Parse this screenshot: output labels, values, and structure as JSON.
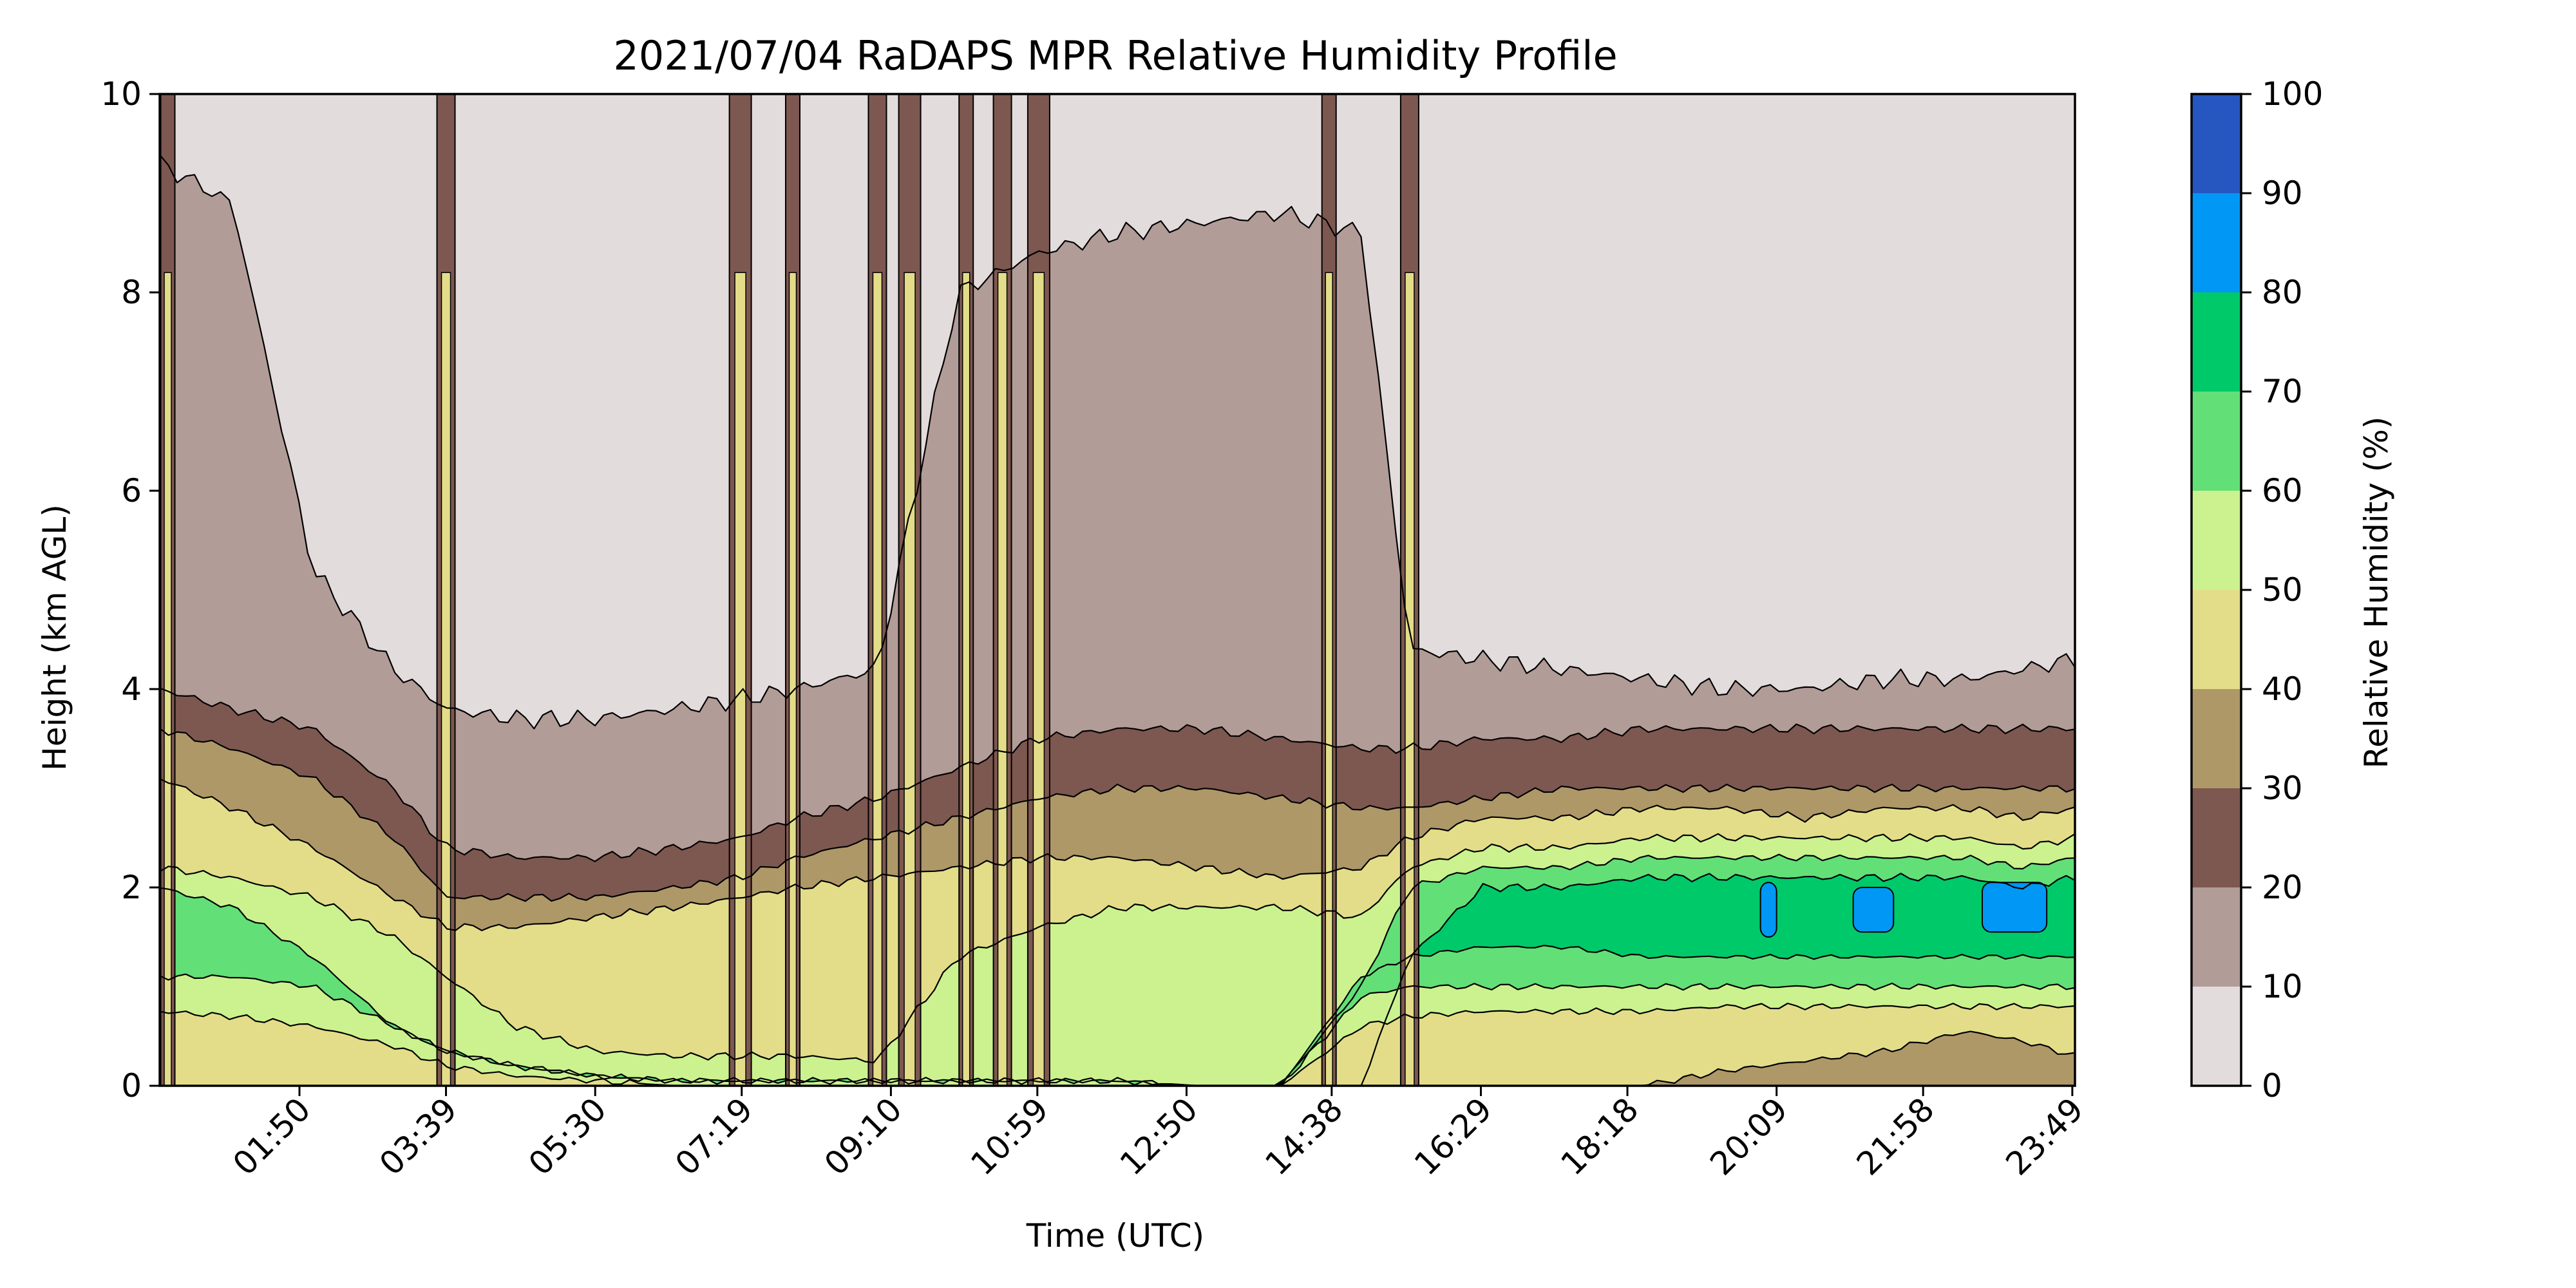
{
  "chart_data": {
    "type": "contourf",
    "title": "2021/07/04 RaDAPS MPR Relative Humidity Profile",
    "xlabel": "Time (UTC)",
    "ylabel": "Height (km AGL)",
    "colorbar_label": "Relative Humidity (%)",
    "x_ticks": [
      "01:50",
      "03:39",
      "05:30",
      "07:19",
      "09:10",
      "10:59",
      "12:50",
      "14:38",
      "16:29",
      "18:18",
      "20:09",
      "21:58",
      "23:49"
    ],
    "x_tick_hours": [
      1.833,
      3.65,
      5.5,
      7.317,
      9.167,
      10.983,
      12.833,
      14.633,
      16.483,
      18.3,
      20.15,
      21.967,
      23.817
    ],
    "xlim_hours": [
      0.1,
      23.85
    ],
    "y_ticks": [
      0,
      2,
      4,
      6,
      8,
      10
    ],
    "ylim": [
      0,
      10
    ],
    "levels": [
      0,
      10,
      20,
      30,
      40,
      50,
      60,
      70,
      80,
      90,
      100
    ],
    "level_colors": [
      "#e3dcdc",
      "#b29c98",
      "#7d5850",
      "#ae9868",
      "#e3dd8a",
      "#cbf28f",
      "#63df78",
      "#00c96a",
      "#0097f5",
      "#2656c0"
    ],
    "boundaries_km": {
      "profile_hours": [
        0.1,
        1.0,
        2.0,
        3.0,
        3.65,
        4.5,
        5.5,
        6.5,
        7.3,
        8.0,
        9.0,
        10.0,
        11.0,
        12.0,
        13.0,
        14.0,
        15.0,
        15.6,
        16.5,
        17.5,
        18.5,
        19.5,
        20.5,
        21.5,
        22.5,
        23.2,
        23.85
      ],
      "rh_10": [
        9.3,
        8.9,
        5.2,
        4.2,
        3.8,
        3.7,
        3.7,
        3.8,
        3.9,
        4.0,
        4.2,
        8.0,
        8.4,
        8.6,
        8.7,
        8.8,
        8.6,
        4.4,
        4.3,
        4.2,
        4.1,
        4.0,
        4.0,
        4.1,
        4.1,
        4.2,
        4.3
      ],
      "rh_20": [
        4.0,
        3.8,
        3.6,
        3.0,
        2.4,
        2.3,
        2.3,
        2.4,
        2.5,
        2.7,
        2.9,
        3.2,
        3.5,
        3.6,
        3.6,
        3.5,
        3.4,
        3.4,
        3.5,
        3.5,
        3.6,
        3.6,
        3.6,
        3.6,
        3.6,
        3.6,
        3.6
      ],
      "rh_30": [
        3.6,
        3.4,
        3.1,
        2.5,
        1.9,
        1.9,
        1.9,
        2.0,
        2.1,
        2.3,
        2.5,
        2.7,
        2.9,
        3.0,
        3.0,
        2.9,
        2.8,
        2.8,
        2.9,
        3.0,
        3.0,
        3.0,
        3.0,
        3.0,
        3.0,
        3.0,
        3.0
      ],
      "rh_40": [
        3.1,
        2.8,
        2.4,
        1.9,
        1.6,
        1.6,
        1.7,
        1.8,
        1.9,
        2.0,
        2.1,
        2.2,
        2.3,
        2.3,
        2.2,
        2.1,
        2.2,
        2.5,
        2.7,
        2.7,
        2.8,
        2.8,
        2.7,
        2.8,
        2.8,
        2.7,
        2.8
      ],
      "rh_50": [
        2.2,
        2.1,
        1.9,
        1.5,
        1.1,
        0.6,
        0.35,
        0.3,
        0.3,
        0.3,
        0.25,
        1.3,
        1.6,
        1.8,
        1.8,
        1.8,
        1.7,
        2.2,
        2.4,
        2.4,
        2.5,
        2.5,
        2.5,
        2.5,
        2.5,
        2.4,
        2.5
      ],
      "rh_60": [
        2.0,
        1.8,
        1.3,
        0.6,
        0.35,
        0.2,
        0.1,
        0.05,
        0.05,
        0.05,
        0.05,
        0.05,
        0.05,
        0.05,
        0.0,
        0.0,
        1.0,
        2.0,
        2.2,
        2.2,
        2.3,
        2.3,
        2.3,
        2.3,
        2.3,
        2.2,
        2.3
      ],
      "rh_70": [
        0.0,
        0.0,
        0.0,
        0.0,
        0.0,
        0.0,
        0.0,
        0.0,
        0.0,
        0.0,
        0.0,
        0.0,
        0.0,
        0.0,
        0.0,
        0.0,
        0.0,
        1.3,
        2.0,
        2.0,
        2.1,
        2.1,
        2.1,
        2.1,
        2.1,
        2.0,
        2.1
      ],
      "rh_lower_60": [
        1.1,
        1.1,
        1.0,
        0.6,
        0.35,
        0.2,
        0.1,
        0.05,
        0.05,
        0.05,
        0.05,
        0.05,
        0.05,
        0.05,
        0.0,
        0.0,
        0.9,
        1.0,
        1.0,
        1.0,
        1.0,
        1.0,
        1.0,
        1.0,
        1.0,
        1.0,
        1.0
      ],
      "rh_lower_50": [
        0.75,
        0.7,
        0.6,
        0.4,
        0.2,
        0.1,
        0.05,
        0.0,
        0.0,
        0.0,
        0.0,
        0.0,
        0.0,
        0.0,
        0.0,
        0.0,
        0.6,
        0.7,
        0.75,
        0.75,
        0.75,
        0.8,
        0.8,
        0.8,
        0.8,
        0.8,
        0.8
      ],
      "rh_lower_70": [
        0.0,
        0.0,
        0.0,
        0.0,
        0.0,
        0.0,
        0.0,
        0.0,
        0.0,
        0.0,
        0.0,
        0.0,
        0.0,
        0.0,
        0.0,
        0.0,
        1.1,
        1.3,
        1.4,
        1.4,
        1.3,
        1.3,
        1.3,
        1.3,
        1.3,
        1.3,
        1.3
      ],
      "rh_upper_90_core": [
        0.0,
        0.0,
        0.0,
        0.0,
        0.0,
        0.0,
        0.0,
        0.0,
        0.0,
        0.0,
        0.0,
        0.0,
        0.0,
        0.0,
        0.0,
        0.0,
        0.0,
        0.0,
        0.0,
        0.0,
        0.0,
        0.0,
        0.0,
        0.0,
        0.0,
        0.0,
        0.0
      ],
      "rh_lower_30_surface": [
        0.0,
        0.0,
        0.0,
        0.0,
        0.0,
        0.0,
        0.0,
        0.0,
        0.0,
        0.0,
        0.0,
        0.0,
        0.0,
        0.0,
        0.0,
        0.0,
        0.0,
        0.0,
        0.0,
        0.0,
        0.0,
        0.15,
        0.25,
        0.35,
        0.55,
        0.45,
        0.3
      ]
    },
    "moist_spikes_hours": [
      0.2,
      3.65,
      7.3,
      7.95,
      9.0,
      9.4,
      10.1,
      10.55,
      11.0,
      14.6,
      15.6
    ],
    "high_rh_patches": [
      {
        "x_hours": [
          21.1,
          21.6
        ],
        "y_km": [
          1.55,
          2.0
        ],
        "level": 80
      },
      {
        "x_hours": [
          19.95,
          20.15
        ],
        "y_km": [
          1.5,
          2.05
        ],
        "level": 80
      },
      {
        "x_hours": [
          22.7,
          23.5
        ],
        "y_km": [
          1.55,
          2.05
        ],
        "level": 80
      }
    ],
    "grid": false,
    "legend": "colorbar-right"
  }
}
